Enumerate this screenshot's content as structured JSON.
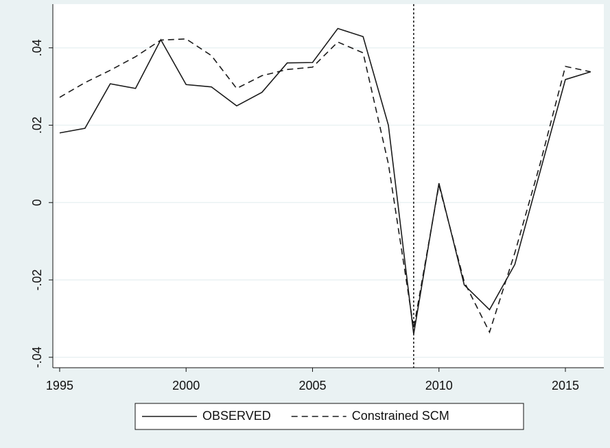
{
  "chart_data": {
    "type": "line",
    "x": [
      1995,
      1996,
      1997,
      1998,
      1999,
      2000,
      2001,
      2002,
      2003,
      2004,
      2005,
      2006,
      2007,
      2008,
      2009,
      2010,
      2011,
      2012,
      2013,
      2014,
      2015,
      2016
    ],
    "series": [
      {
        "name": "OBSERVED",
        "color": "#1a1a1a",
        "dash": "solid",
        "values": [
          0.018,
          0.0192,
          0.0307,
          0.0295,
          0.0421,
          0.0305,
          0.0299,
          0.025,
          0.0285,
          0.0361,
          0.0362,
          0.045,
          0.0429,
          0.02,
          -0.034,
          0.005,
          -0.0213,
          -0.0277,
          -0.016,
          0.008,
          0.0318,
          0.0338
        ]
      },
      {
        "name": "Constrained SCM",
        "color": "#1a1a1a",
        "dash": "dashed",
        "values": [
          0.0272,
          0.031,
          0.0342,
          0.0377,
          0.042,
          0.0423,
          0.038,
          0.0295,
          0.0328,
          0.0344,
          0.035,
          0.0415,
          0.0387,
          0.01,
          -0.0325,
          0.0045,
          -0.0205,
          -0.0335,
          -0.013,
          0.01,
          0.0352,
          0.0338
        ]
      }
    ],
    "xlim": [
      1994.73,
      2016.52
    ],
    "xticks": [
      1995,
      2000,
      2005,
      2010,
      2015
    ],
    "ylim": [
      -0.0427,
      0.0513
    ],
    "yticks": [
      {
        "value": -0.04,
        "label": "-.04"
      },
      {
        "value": -0.02,
        "label": "-.02"
      },
      0,
      {
        "value": 0.02,
        "label": ".02"
      },
      {
        "value": 0.04,
        "label": ".04"
      }
    ],
    "xline": 2009,
    "grid": true,
    "legend": "bottom"
  }
}
